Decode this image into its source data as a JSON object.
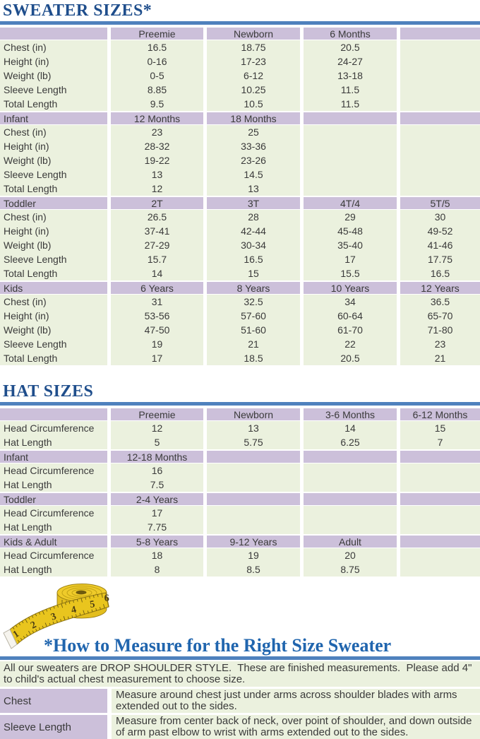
{
  "colors": {
    "title_blue": "#1f4e8c",
    "heading_blue": "#2065ae",
    "rule_blue": "#4f81bd",
    "header_purple": "#ccc0da",
    "cell_green": "#ebf1de",
    "text_dark": "#3a3a3a",
    "tape_yellow": "#e9c51e"
  },
  "sweater_table": {
    "title": "SWEATER SIZES*",
    "sections": [
      {
        "header": [
          "",
          "Preemie",
          "Newborn",
          "6 Months",
          ""
        ],
        "rows": [
          [
            "Chest (in)",
            "16.5",
            "18.75",
            "20.5",
            ""
          ],
          [
            "Height (in)",
            "0-16",
            "17-23",
            "24-27",
            ""
          ],
          [
            "Weight (lb)",
            "0-5",
            "6-12",
            "13-18",
            ""
          ],
          [
            "Sleeve Length",
            "8.85",
            "10.25",
            "11.5",
            ""
          ],
          [
            "Total Length",
            "9.5",
            "10.5",
            "11.5",
            ""
          ]
        ]
      },
      {
        "header": [
          "Infant",
          "12 Months",
          "18 Months",
          "",
          ""
        ],
        "rows": [
          [
            "Chest (in)",
            "23",
            "25",
            "",
            ""
          ],
          [
            "Height (in)",
            "28-32",
            "33-36",
            "",
            ""
          ],
          [
            "Weight (lb)",
            "19-22",
            "23-26",
            "",
            ""
          ],
          [
            "Sleeve Length",
            "13",
            "14.5",
            "",
            ""
          ],
          [
            "Total Length",
            "12",
            "13",
            "",
            ""
          ]
        ]
      },
      {
        "header": [
          "Toddler",
          "2T",
          "3T",
          "4T/4",
          "5T/5"
        ],
        "rows": [
          [
            "Chest (in)",
            "26.5",
            "28",
            "29",
            "30"
          ],
          [
            "Height (in)",
            "37-41",
            "42-44",
            "45-48",
            "49-52"
          ],
          [
            "Weight (lb)",
            "27-29",
            "30-34",
            "35-40",
            "41-46"
          ],
          [
            "Sleeve Length",
            "15.7",
            "16.5",
            "17",
            "17.75"
          ],
          [
            "Total Length",
            "14",
            "15",
            "15.5",
            "16.5"
          ]
        ]
      },
      {
        "header": [
          "Kids",
          "6 Years",
          "8 Years",
          "10 Years",
          "12 Years"
        ],
        "rows": [
          [
            "Chest (in)",
            "31",
            "32.5",
            "34",
            "36.5"
          ],
          [
            "Height (in)",
            "53-56",
            "57-60",
            "60-64",
            "65-70"
          ],
          [
            "Weight (lb)",
            "47-50",
            "51-60",
            "61-70",
            "71-80"
          ],
          [
            "Sleeve Length",
            "19",
            "21",
            "22",
            "23"
          ],
          [
            "Total Length",
            "17",
            "18.5",
            "20.5",
            "21"
          ]
        ]
      }
    ]
  },
  "hat_table": {
    "title": "HAT SIZES",
    "sections": [
      {
        "header": [
          "",
          "Preemie",
          "Newborn",
          "3-6 Months",
          "6-12 Months"
        ],
        "rows": [
          [
            "Head Circumference",
            "12",
            "13",
            "14",
            "15"
          ],
          [
            "Hat Length",
            "5",
            "5.75",
            "6.25",
            "7"
          ]
        ]
      },
      {
        "header": [
          "Infant",
          "12-18 Months",
          "",
          "",
          ""
        ],
        "rows": [
          [
            "Head Circumference",
            "16",
            "",
            "",
            ""
          ],
          [
            "Hat Length",
            "7.5",
            "",
            "",
            ""
          ]
        ]
      },
      {
        "header": [
          "Toddler",
          "2-4 Years",
          "",
          "",
          ""
        ],
        "rows": [
          [
            "Head Circumference",
            "17",
            "",
            "",
            ""
          ],
          [
            "Hat Length",
            "7.75",
            "",
            "",
            ""
          ]
        ]
      },
      {
        "header": [
          "Kids & Adult",
          "5-8 Years",
          "9-12 Years",
          "Adult",
          ""
        ],
        "rows": [
          [
            "Head Circumference",
            "18",
            "19",
            "20",
            ""
          ],
          [
            "Hat Length",
            "8",
            "8.5",
            "8.75",
            ""
          ]
        ]
      }
    ]
  },
  "how_to": {
    "heading": "*How to Measure for the Right Size Sweater",
    "intro": "All our sweaters are DROP SHOULDER STYLE.  These are finished measurements.  Please add 4\" to child's actual chest measurement to choose size.",
    "items": [
      {
        "label": "Chest",
        "text": "Measure around chest just under arms across shoulder blades with arms extended out to the sides."
      },
      {
        "label": "Sleeve Length",
        "text": "Measure from center back of neck, over point of shoulder, and down outside of arm past elbow to wrist with arms extended out to the sides."
      }
    ]
  },
  "tape": {
    "numbers": [
      "1",
      "2",
      "3",
      "4",
      "5",
      "6"
    ]
  }
}
